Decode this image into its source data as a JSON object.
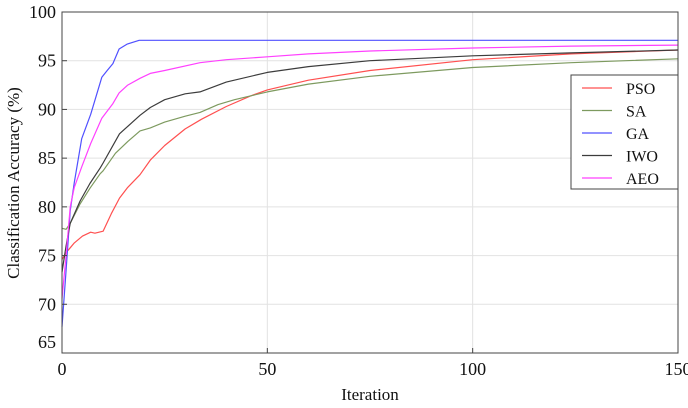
{
  "chart_data": {
    "type": "line",
    "title": "",
    "xlabel": "Iteration",
    "ylabel": "Classification Accuracy (%)",
    "xlim": [
      0,
      150
    ],
    "ylim": [
      65,
      100
    ],
    "xticks": [
      0,
      50,
      100,
      150
    ],
    "yticks": [
      65,
      70,
      75,
      80,
      85,
      90,
      95,
      100
    ],
    "grid": true,
    "legend_position": "upper right (inside, below top)",
    "series": [
      {
        "name": "PSO",
        "color": "#ff5050",
        "x": [
          0,
          1,
          2,
          3,
          5,
          7,
          8,
          10,
          12,
          14,
          16,
          19,
          21.5,
          25,
          30,
          34,
          40,
          46,
          50,
          60,
          75,
          100,
          124,
          150
        ],
        "y": [
          74.6,
          75.3,
          75.8,
          76.3,
          77.0,
          77.4,
          77.3,
          77.5,
          79.3,
          80.9,
          82.0,
          83.3,
          84.8,
          86.3,
          88.0,
          89.0,
          90.3,
          91.4,
          92.0,
          93.0,
          94.0,
          95.1,
          95.7,
          96.1
        ]
      },
      {
        "name": "SA",
        "color": "#7d9a5f",
        "x": [
          0,
          1,
          2,
          4.4,
          6.8,
          9.3,
          10,
          13,
          16,
          19,
          21.5,
          25,
          30,
          33.6,
          38,
          42,
          46,
          50,
          60,
          75,
          100,
          124,
          150
        ],
        "y": [
          77.8,
          77.7,
          78.3,
          80.3,
          81.9,
          83.4,
          83.7,
          85.5,
          86.7,
          87.8,
          88.1,
          88.7,
          89.3,
          89.7,
          90.5,
          91.0,
          91.4,
          91.8,
          92.6,
          93.4,
          94.3,
          94.8,
          95.2
        ]
      },
      {
        "name": "GA",
        "color": "#5050ff",
        "x": [
          0,
          1,
          2,
          3,
          4.8,
          7,
          9.7,
          11,
          12.4,
          13.9,
          15.8,
          18.8,
          30,
          50,
          100,
          150
        ],
        "y": [
          67.7,
          73.5,
          79.6,
          82.5,
          87.0,
          89.5,
          93.3,
          94.0,
          94.7,
          96.2,
          96.7,
          97.1,
          97.1,
          97.1,
          97.1,
          97.1
        ]
      },
      {
        "name": "IWO",
        "color": "#3c3c3c",
        "x": [
          0,
          1,
          2,
          4.4,
          6.8,
          9.3,
          10,
          14,
          19,
          21.5,
          25,
          30,
          33.6,
          40,
          50,
          60,
          75,
          100,
          124,
          150
        ],
        "y": [
          73.3,
          76.0,
          78.3,
          80.6,
          82.4,
          84.0,
          84.5,
          87.5,
          89.4,
          90.2,
          91.0,
          91.6,
          91.8,
          92.8,
          93.8,
          94.4,
          95.0,
          95.5,
          95.8,
          96.1
        ]
      },
      {
        "name": "AEO",
        "color": "#ff40ff",
        "x": [
          0,
          1,
          2,
          3,
          4.8,
          7,
          9.7,
          12.4,
          13.9,
          16,
          19,
          21.5,
          25,
          33.6,
          40,
          50,
          60,
          75,
          100,
          124,
          150
        ],
        "y": [
          70.6,
          75.0,
          80.0,
          82.0,
          84.1,
          86.5,
          89.1,
          90.6,
          91.7,
          92.5,
          93.2,
          93.7,
          94.0,
          94.8,
          95.1,
          95.4,
          95.7,
          96.0,
          96.3,
          96.5,
          96.6
        ]
      }
    ]
  },
  "axes": {
    "xlabel": "Iteration",
    "ylabel": "Classification Accuracy (%)",
    "xtick_labels": [
      "0",
      "50",
      "100",
      "150"
    ],
    "ytick_labels": [
      "65",
      "70",
      "75",
      "80",
      "85",
      "90",
      "95",
      "100"
    ]
  },
  "legend": {
    "items": [
      {
        "label": "PSO",
        "color": "#ff5050"
      },
      {
        "label": "SA",
        "color": "#7d9a5f"
      },
      {
        "label": "GA",
        "color": "#5050ff"
      },
      {
        "label": "IWO",
        "color": "#3c3c3c"
      },
      {
        "label": "AEO",
        "color": "#ff40ff"
      }
    ]
  }
}
